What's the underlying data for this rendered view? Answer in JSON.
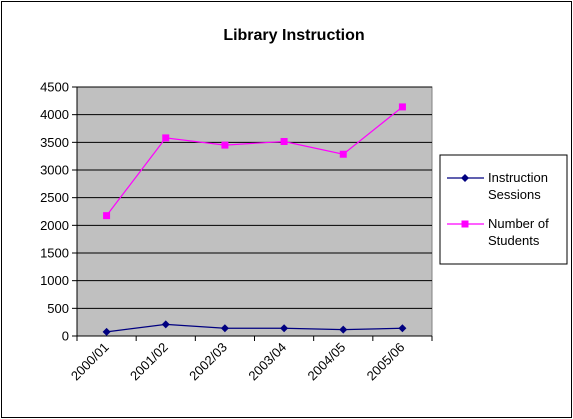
{
  "chart_data": {
    "type": "line",
    "title": "Library Instruction",
    "xlabel": "",
    "ylabel": "",
    "categories": [
      "2000/01",
      "2001/02",
      "2002/03",
      "2003/04",
      "2004/05",
      "2005/06"
    ],
    "ylim": [
      0,
      4500
    ],
    "yticks": [
      0,
      500,
      1000,
      1500,
      2000,
      2500,
      3000,
      3500,
      4000,
      4500
    ],
    "grid": true,
    "legend_position": "right",
    "plot_background": "#c0c0c0",
    "series": [
      {
        "name": "Instruction Sessions",
        "color": "#000080",
        "marker": "diamond",
        "values": [
          75,
          210,
          140,
          140,
          115,
          140
        ]
      },
      {
        "name": "Number of Students",
        "color": "#ff00ff",
        "marker": "square",
        "values": [
          2175,
          3580,
          3450,
          3515,
          3285,
          4140
        ]
      }
    ]
  }
}
